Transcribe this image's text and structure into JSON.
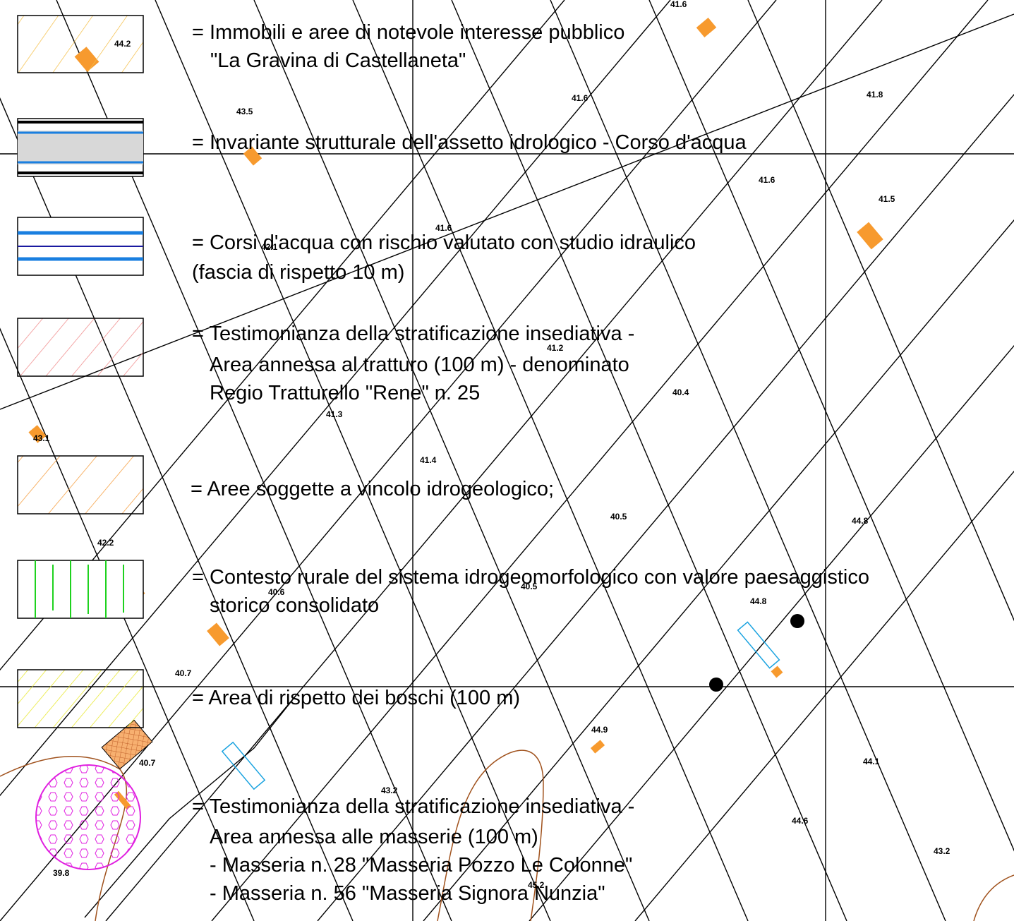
{
  "legend": [
    {
      "lines": [
        "= Immobili e aree di notevole interesse pubblico",
        "\"La Gravina di Castellaneta\""
      ]
    },
    {
      "lines": [
        "= Invariante strutturale dell'assetto idrologico -  Corso d'acqua"
      ]
    },
    {
      "lines": [
        "= Corsi d'acqua con rischio valutato con studio idraulico",
        "(fascia di rispetto 10 m)"
      ]
    },
    {
      "lines": [
        "= Testimonianza della stratificazione insediativa -",
        "Area annessa al tratturo (100 m) - denominato",
        "Regio Tratturello \"Rene\" n. 25"
      ]
    },
    {
      "lines": [
        "= Aree soggette a vincolo idrogeologico;"
      ]
    },
    {
      "lines": [
        "= Contesto rurale del sistema idrogeomorfologico con valore paesaggistico",
        "storico consolidato"
      ]
    },
    {
      "lines": [
        "= Area di rispetto dei boschi (100 m)"
      ]
    },
    {
      "lines": [
        "= Testimonianza della stratificazione insediativa -",
        "Area annessa alle masserie (100 m)",
        "- Masseria n. 28 \"Masseria Pozzo Le Colonne\"",
        "- Masseria n. 56 \"Masseria Signora Nunzia\""
      ]
    }
  ],
  "spot_heights": [
    "44.2",
    "41.6",
    "43.5",
    "41.6",
    "41.8",
    "41.6",
    "41.5",
    "41.6",
    "42.1",
    "41.2",
    "40.4",
    "41.3",
    "43.1",
    "41.4",
    "40.5",
    "44.8",
    "42.2",
    "40.6",
    "40.5",
    "44.8",
    "40.7",
    "44.9",
    "40.7",
    "44.1",
    "43.2",
    "44.6",
    "43.2",
    "45.2",
    "39.8"
  ]
}
